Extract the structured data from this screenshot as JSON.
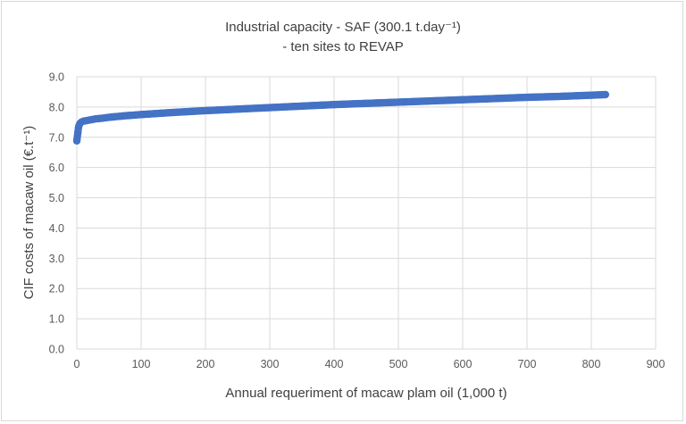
{
  "chart_data": {
    "type": "scatter",
    "title_line1": "Industrial capacity - SAF (300.1 t.day⁻¹)",
    "title_line2": "- ten sites to REVAP",
    "xlabel": "Annual requeriment of macaw plam oil (1,000 t)",
    "ylabel": "CIF costs of macaw oil (€.t⁻¹)",
    "xlim": [
      0,
      900
    ],
    "ylim": [
      0,
      9
    ],
    "xticks": [
      "0",
      "100",
      "200",
      "300",
      "400",
      "500",
      "600",
      "700",
      "800",
      "900"
    ],
    "yticks": [
      "0.0",
      "1.0",
      "2.0",
      "3.0",
      "4.0",
      "5.0",
      "6.0",
      "7.0",
      "8.0",
      "9.0"
    ],
    "grid": true,
    "marker_color": "#4472c4",
    "series": [
      {
        "points": [
          [
            0,
            6.88
          ],
          [
            0.5,
            6.97
          ],
          [
            1,
            7.05
          ],
          [
            1.5,
            7.13
          ],
          [
            2,
            7.22
          ],
          [
            2.5,
            7.3
          ],
          [
            3,
            7.36
          ],
          [
            4,
            7.42
          ],
          [
            5,
            7.46
          ],
          [
            7,
            7.5
          ],
          [
            10,
            7.53
          ],
          [
            15,
            7.55
          ],
          [
            20,
            7.57
          ],
          [
            30,
            7.61
          ],
          [
            40,
            7.63
          ],
          [
            50,
            7.66
          ],
          [
            75,
            7.71
          ],
          [
            100,
            7.75
          ],
          [
            150,
            7.82
          ],
          [
            200,
            7.88
          ],
          [
            250,
            7.93
          ],
          [
            300,
            7.98
          ],
          [
            350,
            8.03
          ],
          [
            400,
            8.08
          ],
          [
            450,
            8.12
          ],
          [
            500,
            8.16
          ],
          [
            550,
            8.2
          ],
          [
            600,
            8.24
          ],
          [
            650,
            8.28
          ],
          [
            700,
            8.32
          ],
          [
            750,
            8.35
          ],
          [
            800,
            8.39
          ],
          [
            822,
            8.41
          ]
        ]
      }
    ]
  }
}
